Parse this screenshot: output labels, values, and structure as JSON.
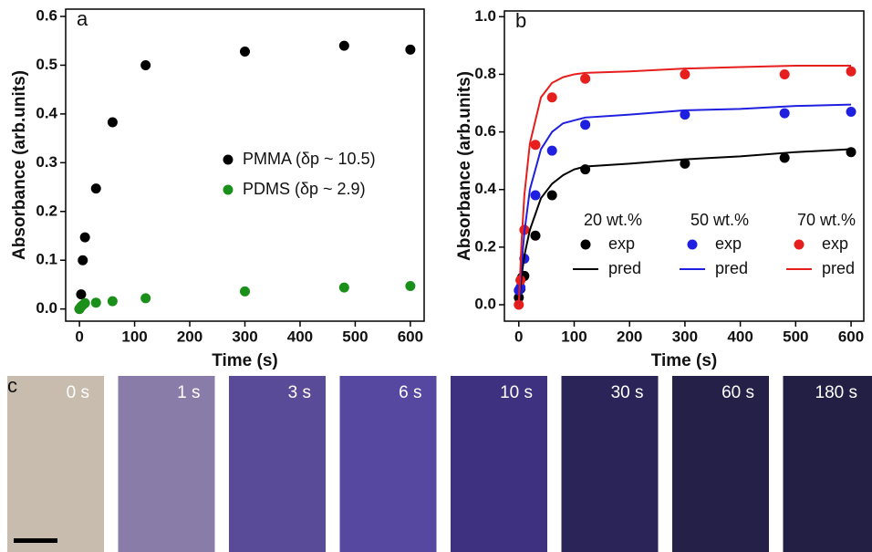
{
  "chart_data": [
    {
      "type": "scatter",
      "annotation": "a",
      "x_label": "Time (s)",
      "y_label": "Absorbance (arb.units)",
      "xlim": [
        -25,
        625
      ],
      "ylim": [
        -0.025,
        0.615
      ],
      "xticks": [
        0,
        100,
        200,
        300,
        400,
        500,
        600
      ],
      "yticks": [
        {
          "value": 0,
          "label": "0.0"
        },
        0.1,
        0.2,
        0.3,
        0.4,
        0.5,
        0.6
      ],
      "series": [
        {
          "name": "PMMA (δp ~ 10.5)",
          "color": "#000000",
          "x": [
            0,
            3,
            6,
            10,
            30,
            60,
            120,
            300,
            480,
            600
          ],
          "values": [
            0,
            0.03,
            0.1,
            0.147,
            0.247,
            0.383,
            0.5,
            0.528,
            0.54,
            0.532
          ]
        },
        {
          "name": "PDMS (δp ~ 2.9)",
          "color": "#1a8f1a",
          "x": [
            0,
            3,
            6,
            10,
            30,
            60,
            120,
            300,
            480,
            600
          ],
          "values": [
            0,
            0.005,
            0.008,
            0.012,
            0.013,
            0.016,
            0.022,
            0.036,
            0.044,
            0.047
          ]
        }
      ]
    },
    {
      "type": "scatter-line",
      "annotation": "b",
      "x_label": "Time (s)",
      "y_label": "Absorbance (arb.units)",
      "xlim": [
        -26,
        623
      ],
      "ylim": [
        -0.057,
        1.02
      ],
      "xticks": [
        0,
        100,
        200,
        300,
        400,
        500,
        600
      ],
      "yticks": [
        {
          "value": 0,
          "label": "0.0"
        },
        0.2,
        0.4,
        0.6,
        0.8,
        {
          "value": 1,
          "label": "1.0"
        }
      ],
      "legend_groups": [
        "20 wt.%",
        "50 wt.%",
        "70 wt.%"
      ],
      "series": [
        {
          "name": "exp",
          "color": "#000000",
          "x": [
            0,
            3,
            6,
            10,
            30,
            60,
            120,
            300,
            480,
            600
          ],
          "values": [
            0.025,
            0.055,
            0.095,
            0.1,
            0.24,
            0.38,
            0.47,
            0.49,
            0.51,
            0.53
          ]
        },
        {
          "name": "exp",
          "color": "#1f1fe0",
          "x": [
            0,
            3,
            10,
            30,
            60,
            120,
            300,
            480,
            600
          ],
          "values": [
            0.05,
            0.06,
            0.16,
            0.38,
            0.535,
            0.625,
            0.66,
            0.665,
            0.67
          ]
        },
        {
          "name": "exp",
          "color": "#e61e1e",
          "x": [
            0,
            3,
            10,
            30,
            60,
            120,
            300,
            480,
            600
          ],
          "values": [
            0,
            0.085,
            0.26,
            0.555,
            0.72,
            0.785,
            0.8,
            0.8,
            0.81
          ]
        },
        {
          "name": "pred",
          "color": "#000000",
          "x": [
            0,
            5,
            10,
            20,
            40,
            60,
            80,
            100,
            120,
            200,
            300,
            400,
            500,
            600
          ],
          "values": [
            0,
            0.1,
            0.17,
            0.26,
            0.37,
            0.42,
            0.45,
            0.47,
            0.48,
            0.49,
            0.505,
            0.515,
            0.53,
            0.54
          ]
        },
        {
          "name": "pred",
          "color": "#1f1fe0",
          "x": [
            0,
            5,
            10,
            20,
            40,
            60,
            80,
            100,
            120,
            200,
            300,
            400,
            500,
            600
          ],
          "values": [
            0,
            0.14,
            0.25,
            0.4,
            0.54,
            0.6,
            0.63,
            0.64,
            0.65,
            0.66,
            0.675,
            0.68,
            0.69,
            0.695
          ]
        },
        {
          "name": "pred",
          "color": "#e61e1e",
          "x": [
            0,
            5,
            10,
            20,
            40,
            60,
            80,
            100,
            120,
            200,
            300,
            400,
            500,
            600
          ],
          "values": [
            0,
            0.22,
            0.38,
            0.56,
            0.72,
            0.77,
            0.79,
            0.8,
            0.805,
            0.81,
            0.82,
            0.825,
            0.83,
            0.83
          ]
        }
      ]
    }
  ],
  "panel_c": {
    "label": "c",
    "frames": [
      {
        "label": "0 s",
        "color": "#c8bcae"
      },
      {
        "label": "1 s",
        "color": "#8a7ca8"
      },
      {
        "label": "3 s",
        "color": "#5a4b98"
      },
      {
        "label": "6 s",
        "color": "#5647a0"
      },
      {
        "label": "10 s",
        "color": "#3e3280"
      },
      {
        "label": "30 s",
        "color": "#2a2458"
      },
      {
        "label": "60 s",
        "color": "#242048"
      },
      {
        "label": "180 s",
        "color": "#221e44"
      }
    ]
  }
}
